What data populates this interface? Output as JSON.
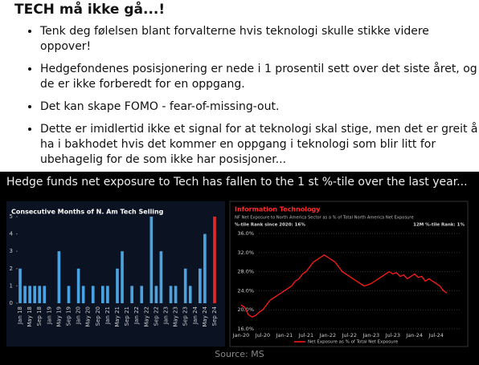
{
  "header": {
    "title": "TECH må ikke gå...!"
  },
  "bullets": [
    "Tenk deg følelsen blant forvalterne hvis teknologi skulle stikke videre oppover!",
    "Hedgefondenes posisjonering er nede i 1 prosentil sett over det siste året, og de er ikke forberedt for en oppgang.",
    "Det kan skape FOMO - fear-of-missing-out.",
    "Dette er imidlertid ikke et signal for at teknologi skal stige, men det er greit å ha i bakhodet hvis det kommer en oppgang i teknologi som blir litt for ubehagelig for de som ikke har posisjoner..."
  ],
  "image": {
    "caption": "Hedge funds net exposure to Tech has fallen to the 1 st %-tile over the last year...",
    "source": "Source: MS"
  },
  "chart_data": [
    {
      "type": "bar",
      "title": "Consecutive Months of N. Am Tech Selling",
      "color": "#4aa3df",
      "last_bar_color": "#e8262a",
      "categories": [
        "Jan 18",
        null,
        "May 18",
        null,
        "Sep 18",
        null,
        "Jan 19",
        null,
        "May 19",
        null,
        "Sep 19",
        null,
        "Jan 20",
        null,
        "May 20",
        null,
        "Sep 20",
        null,
        "Jan 21",
        null,
        "May 21",
        null,
        "Sep 21",
        null,
        "Jan 22",
        null,
        "May 22",
        null,
        "Sep 22",
        null,
        "Jan 23",
        null,
        "May 23",
        null,
        "Sep 23",
        null,
        "Jan 24",
        null,
        "May 24",
        null,
        "Sep 24"
      ],
      "values": [
        2,
        1,
        1,
        1,
        1,
        1,
        0,
        0,
        3,
        0,
        1,
        0,
        2,
        1,
        0,
        1,
        0,
        1,
        1,
        0,
        2,
        3,
        0,
        1,
        0,
        1,
        0,
        5,
        1,
        3,
        0,
        1,
        1,
        0,
        2,
        1,
        0,
        2,
        4,
        0,
        5
      ],
      "ylim": [
        0,
        5
      ],
      "yticks": [
        0,
        1,
        2,
        3,
        4,
        5
      ]
    },
    {
      "type": "line",
      "title": "Information Technology",
      "subtitle": "NF Net Exposure to North America Sector as a % of Total North America Net Exposure",
      "note_left": "%-tile Rank since 2020: 16%",
      "note_right": "12M %-tile Rank: 1%",
      "legend": "Net Exposure as % of Total Net Exposure",
      "color": "#ff1a1a",
      "categories": [
        "Jan-20",
        null,
        null,
        null,
        null,
        null,
        "Jul-20",
        null,
        null,
        null,
        null,
        null,
        "Jan-21",
        null,
        null,
        null,
        null,
        null,
        "Jul-21",
        null,
        null,
        null,
        null,
        null,
        "Jan-22",
        null,
        null,
        null,
        null,
        null,
        "Jul-22",
        null,
        null,
        null,
        null,
        null,
        "Jan-23",
        null,
        null,
        null,
        null,
        null,
        "Jul-23",
        null,
        null,
        null,
        null,
        null,
        "Jan-24",
        null,
        null,
        null,
        null,
        null,
        "Jul-24",
        null,
        null,
        null
      ],
      "values": [
        21,
        20.5,
        19,
        18.5,
        18.8,
        19.5,
        20,
        21,
        22,
        22.5,
        23,
        23.5,
        24,
        24.5,
        25,
        26,
        26.5,
        27.5,
        28,
        29,
        30,
        30.5,
        31,
        31.5,
        31,
        30.5,
        30,
        29,
        28,
        27.5,
        27,
        26.5,
        26,
        25.5,
        25,
        25.2,
        25.5,
        26,
        26.5,
        27,
        27.5,
        28,
        27.5,
        27.8,
        27,
        27.3,
        26.5,
        27,
        27.5,
        26.8,
        27,
        26,
        26.5,
        26,
        25.5,
        25,
        24,
        23.5
      ],
      "ylim": [
        16,
        36
      ],
      "yticks": [
        {
          "value": 16,
          "label": "16.0%"
        },
        {
          "value": 20,
          "label": "20.0%"
        },
        {
          "value": 24,
          "label": "24.0%"
        },
        {
          "value": 28,
          "label": "28.0%"
        },
        {
          "value": 32,
          "label": "32.0%"
        },
        {
          "value": 36,
          "label": "36.0%"
        }
      ]
    }
  ]
}
